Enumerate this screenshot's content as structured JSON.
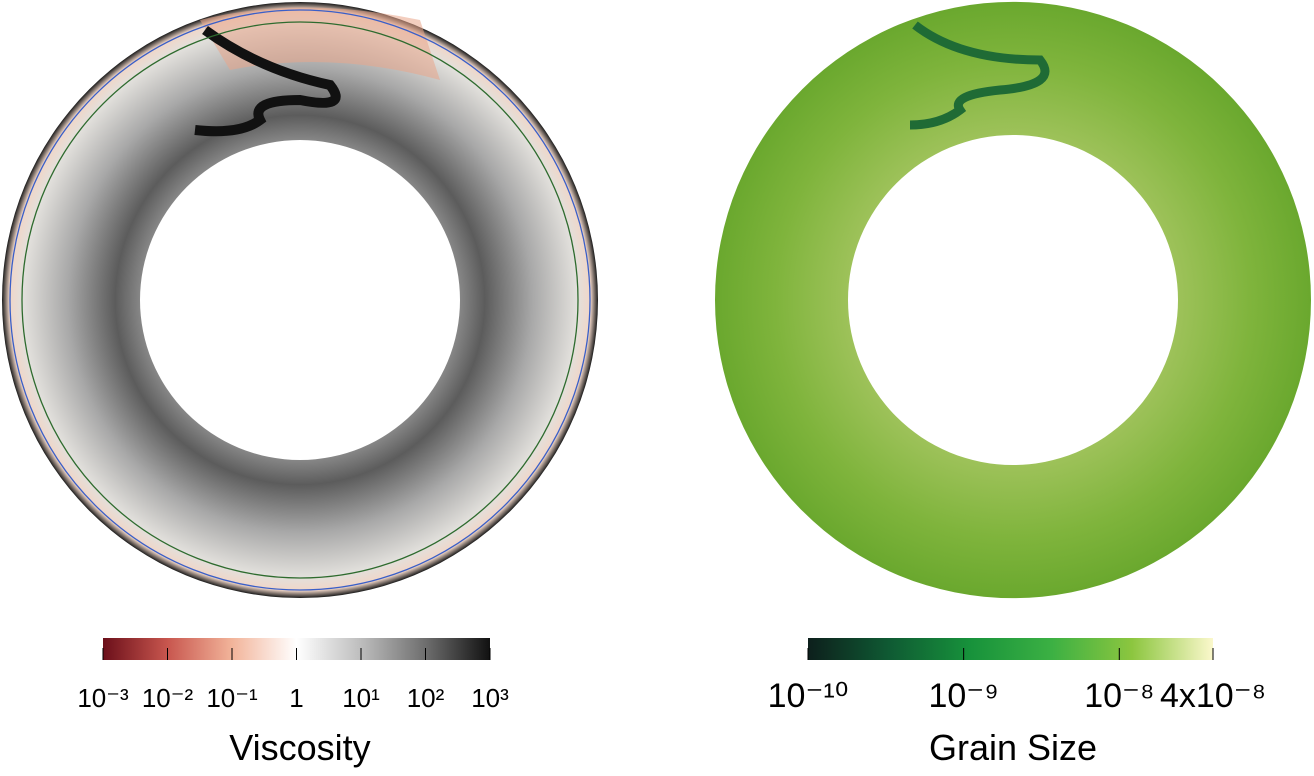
{
  "chart_data": [
    {
      "type": "colorbar",
      "title": "Viscosity",
      "log_scale": true,
      "xlim": [
        0.001,
        1000
      ],
      "xticks": [
        {
          "value": 0.001,
          "label": "10⁻³"
        },
        {
          "value": 0.01,
          "label": "10⁻²"
        },
        {
          "value": 0.1,
          "label": "10⁻¹"
        },
        1,
        {
          "value": 10,
          "label": "10¹"
        },
        {
          "value": 100,
          "label": "10²"
        },
        {
          "value": 1000,
          "label": "10³"
        }
      ],
      "colormap": [
        "#6b0f1a",
        "#c8564e",
        "#f2b49a",
        "#ffffff",
        "#bdbdbd",
        "#6e6e6e",
        "#111111"
      ]
    },
    {
      "type": "colorbar",
      "title": "Grain Size",
      "log_scale": true,
      "xlim": [
        1e-10,
        4e-08
      ],
      "xticks": [
        {
          "value": 1e-10,
          "label": "10⁻¹⁰"
        },
        {
          "value": 1e-09,
          "label": "10⁻⁹"
        },
        {
          "value": 1e-08,
          "label": "10⁻⁸"
        },
        {
          "value": 4e-08,
          "label": "4x10⁻⁸"
        }
      ],
      "colormap": [
        "#0d1f1c",
        "#0f5a33",
        "#17923b",
        "#3bb043",
        "#8cc63f",
        "#fbf8cc"
      ]
    }
  ]
}
